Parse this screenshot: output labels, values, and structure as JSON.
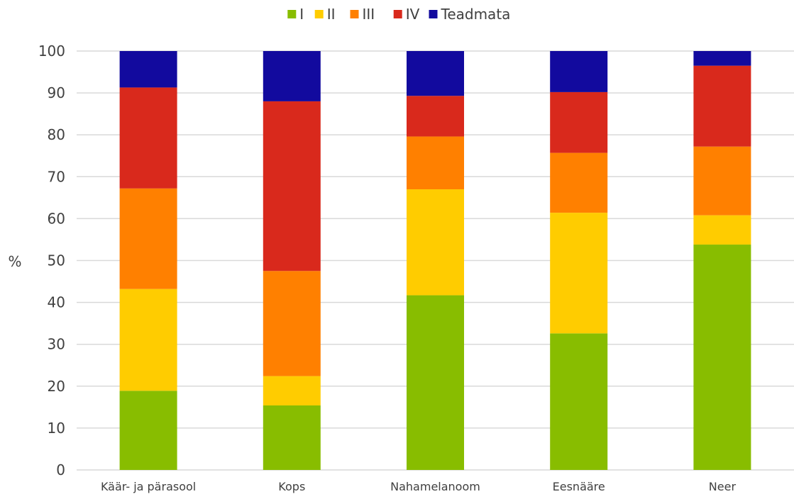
{
  "chart_data": {
    "type": "bar",
    "stacked": true,
    "categories": [
      "Käär- ja pärasool",
      "Kops",
      "Nahamelanoom",
      "Eesnääre",
      "Neer"
    ],
    "series": [
      {
        "name": "I",
        "color": "#88bd00",
        "values": [
          18.9,
          15.4,
          41.7,
          32.6,
          53.8
        ]
      },
      {
        "name": "II",
        "color": "#ffcc00",
        "values": [
          24.3,
          7.0,
          25.3,
          28.8,
          7.0
        ]
      },
      {
        "name": "III",
        "color": "#ff8000",
        "values": [
          24.0,
          25.1,
          12.6,
          14.3,
          16.4
        ]
      },
      {
        "name": "IV",
        "color": "#d9291c",
        "values": [
          24.1,
          40.5,
          9.7,
          14.5,
          19.3
        ]
      },
      {
        "name": "Teadmata",
        "color": "#120a9e",
        "values": [
          8.7,
          12.0,
          10.7,
          9.8,
          3.5
        ]
      }
    ],
    "ylabel": "%",
    "xlabel": "",
    "ylim": [
      0,
      100
    ],
    "yticks": [
      0,
      10,
      20,
      30,
      40,
      50,
      60,
      70,
      80,
      90,
      100
    ],
    "grid": true,
    "legend_position": "top-center"
  }
}
